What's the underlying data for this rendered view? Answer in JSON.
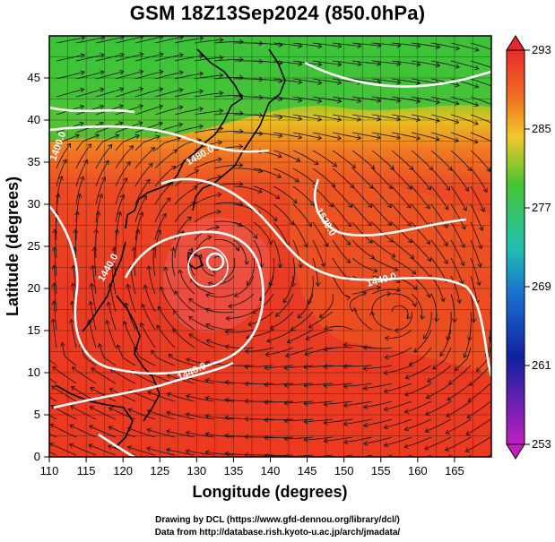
{
  "title": "GSM 18Z13Sep2024 (850.0hPa)",
  "map": {
    "x_axis_label": "Longitude (degrees)",
    "y_axis_label": "Latitude  (degrees)",
    "lon_range": [
      110,
      170
    ],
    "lat_range": [
      0,
      50
    ],
    "x_ticks": [
      "110",
      "115",
      "120",
      "125",
      "130",
      "135",
      "140",
      "145",
      "150",
      "155",
      "160",
      "165"
    ],
    "y_ticks": [
      "0",
      "5",
      "10",
      "15",
      "20",
      "25",
      "30",
      "35",
      "40",
      "45"
    ],
    "contour_labels": [
      "1440.0",
      "1440.0",
      "1440.0",
      "1520.0",
      "1480.0",
      "1400.0"
    ],
    "color_scale": {
      "labels": [
        "293",
        "285",
        "277",
        "269",
        "261",
        "253"
      ],
      "colors": [
        "#e8272a",
        "#f08020",
        "#f3d02a",
        "#40c030",
        "#20c0c0",
        "#1a6fd0",
        "#1020a0",
        "#c020c0"
      ]
    },
    "temperature_regions": [
      "green-north",
      "orange-mid",
      "red-south"
    ]
  },
  "credits": {
    "line1": "Drawing by DCL (https://www.gfd-dennou.org/library/dcl/)",
    "line2": "Data from http://database.rish.kyoto-u.ac.jp/arch/jmadata/"
  }
}
